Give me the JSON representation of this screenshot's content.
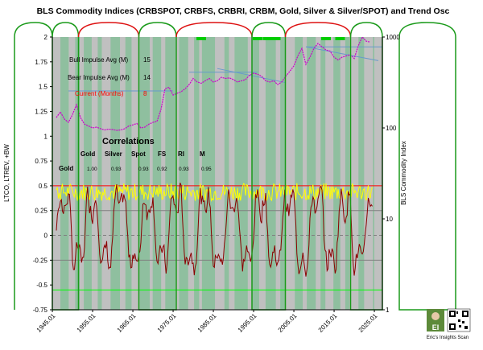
{
  "chart_data": {
    "type": "line",
    "title": "BLS Commodity Indices (CRBSPOT, CRBFS, CRBRI, CRBM, Gold, Silver & Silver/SPOT) and Trend Osc",
    "ylabel_left": "LTCO, LTREV, +BW",
    "ylabel_right": "BLS Commodity Index",
    "x_ticks": [
      "1945.01",
      "1955.01",
      "1965.01",
      "1975.01",
      "1985.01",
      "1995.01",
      "2005.01",
      "2015.01",
      "2025.01"
    ],
    "y_left_ticks": [
      "2",
      "1.75",
      "1.5",
      "1.25",
      "1",
      "0.75",
      "0.5",
      "0.25",
      "0",
      "-0.25",
      "-0.5",
      "-0.75"
    ],
    "y_left_range": [
      -0.75,
      2
    ],
    "y_right_ticks": [
      "1000",
      "100",
      "10",
      "1"
    ],
    "y_right_range": [
      1,
      1000
    ],
    "x_range": [
      1945.0,
      2027.0
    ],
    "reference_lines": [
      {
        "name": "upper-band",
        "value": 0.5,
        "color": "#ff0000"
      },
      {
        "name": "mid-upper",
        "value": 0.25,
        "color": "#808080"
      },
      {
        "name": "zero",
        "value": 0.0,
        "color": "#808080"
      },
      {
        "name": "mid-lower",
        "value": -0.25,
        "color": "#808080"
      },
      {
        "name": "lower-band",
        "value": -0.55,
        "color": "#00ff00"
      }
    ],
    "cycle_boxes": [
      {
        "type": "trough",
        "start": 1945.0,
        "end": 1951.5
      },
      {
        "type": "peak",
        "start": 1951.5,
        "end": 1966.5
      },
      {
        "type": "trough",
        "start": 1966.5,
        "end": 1975.8
      },
      {
        "type": "peak",
        "start": 1975.8,
        "end": 1994.6
      },
      {
        "type": "trough",
        "start": 1994.6,
        "end": 2002.9
      },
      {
        "type": "peak",
        "start": 2002.9,
        "end": 2019.1
      },
      {
        "type": "trough",
        "start": 2019.1,
        "end": 2027.0
      }
    ],
    "green_markers": [
      1982.0,
      1996.0,
      1998.5,
      2000.5,
      2013.0,
      2016.5
    ],
    "index_series": {
      "name": "BLS Commodity Index",
      "color": "#cc00cc",
      "x": [
        1946,
        1947,
        1948,
        1949,
        1950,
        1951,
        1952,
        1953,
        1954,
        1955,
        1956,
        1957,
        1958,
        1959,
        1960,
        1961,
        1962,
        1963,
        1964,
        1965,
        1966,
        1967,
        1968,
        1969,
        1970,
        1971,
        1972,
        1973,
        1974,
        1975,
        1976,
        1977,
        1978,
        1979,
        1980,
        1981,
        1982,
        1983,
        1984,
        1985,
        1986,
        1987,
        1988,
        1989,
        1990,
        1991,
        1992,
        1993,
        1994,
        1995,
        1996,
        1997,
        1998,
        1999,
        2000,
        2001,
        2002,
        2003,
        2004,
        2005,
        2006,
        2007,
        2008,
        2009,
        2010,
        2011,
        2012,
        2013,
        2014,
        2015,
        2016,
        2017,
        2018,
        2019,
        2020,
        2021,
        2022,
        2023,
        2024
      ],
      "y": [
        130,
        150,
        125,
        115,
        140,
        180,
        130,
        110,
        105,
        100,
        102,
        98,
        95,
        97,
        96,
        94,
        95,
        98,
        105,
        108,
        112,
        100,
        102,
        110,
        115,
        118,
        160,
        270,
        280,
        230,
        240,
        250,
        270,
        300,
        350,
        320,
        310,
        330,
        350,
        320,
        330,
        360,
        350,
        355,
        340,
        320,
        330,
        340,
        380,
        400,
        390,
        370,
        330,
        320,
        330,
        300,
        320,
        370,
        420,
        480,
        620,
        750,
        500,
        600,
        750,
        850,
        780,
        720,
        700,
        600,
        560,
        600,
        620,
        640,
        580,
        800,
        1000,
        900,
        880
      ]
    },
    "trend_lines": [
      {
        "x": [
          1949,
          1975
        ],
        "y": [
          255,
          255
        ],
        "color": "#6699cc"
      },
      {
        "x": [
          1979,
          1996
        ],
        "y": [
          410,
          410
        ],
        "color": "#6699cc"
      },
      {
        "x": [
          1986,
          2003
        ],
        "y": [
          450,
          315
        ],
        "color": "#6699cc"
      },
      {
        "x": [
          2008,
          2027
        ],
        "y": [
          780,
          780
        ],
        "color": "#6699cc"
      },
      {
        "x": [
          2008,
          2026
        ],
        "y": [
          780,
          550
        ],
        "color": "#6699cc"
      }
    ],
    "osc_yellow": {
      "name": "+BW",
      "color": "#ffff00"
    },
    "osc_red": {
      "name": "LTCO",
      "color": "#8b0000"
    },
    "stats": [
      {
        "label": "Bull Impulse Avg (M)",
        "value": "15",
        "color": "#000000"
      },
      {
        "label": "Bear Impulse Avg (M)",
        "value": "14",
        "color": "#000000"
      },
      {
        "label": "Current (Months)",
        "value": "8",
        "color": "#ff0000"
      }
    ],
    "correlations": {
      "title": "Correlations",
      "columns": [
        "Gold",
        "Silver",
        "Spot",
        "FS",
        "RI",
        "M"
      ],
      "row_label": "Gold",
      "values": [
        "1.00",
        "0.93",
        "0.93",
        "0.92",
        "0.93",
        "0.95"
      ]
    }
  },
  "logo": {
    "initials": "EI",
    "caption": "Eric's Insights  Scan"
  }
}
